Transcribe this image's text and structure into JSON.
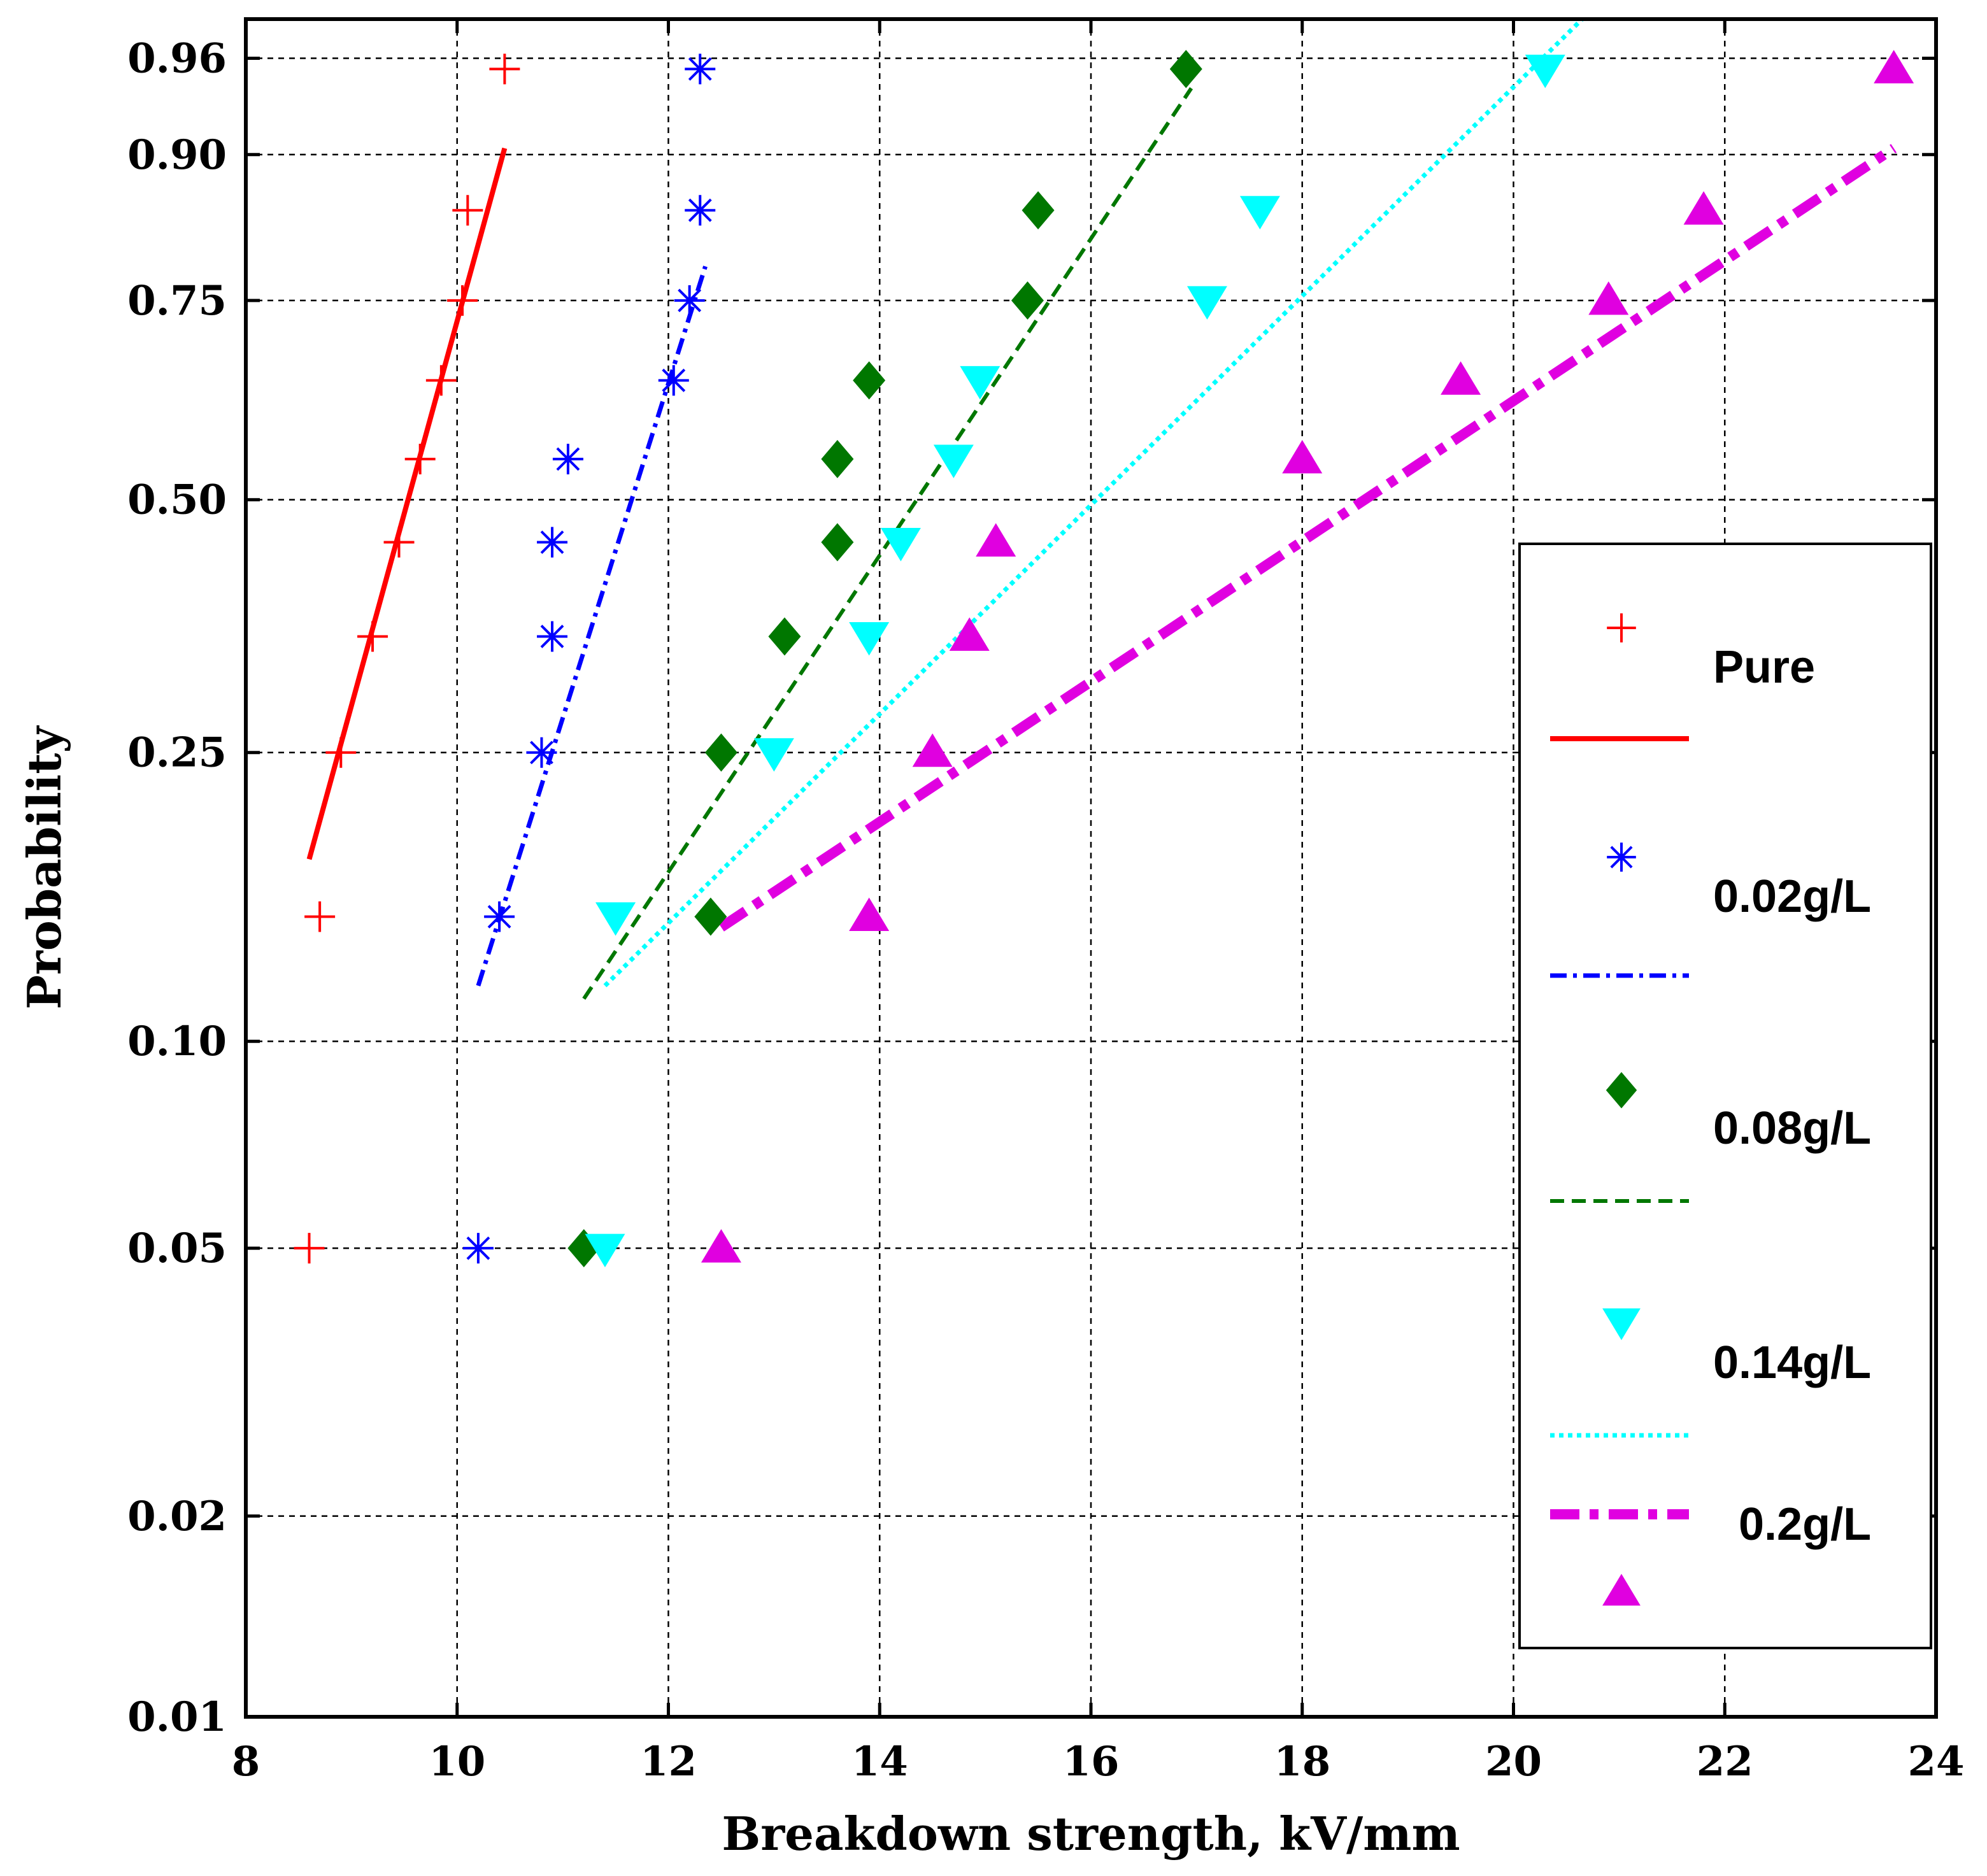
{
  "chart_data": {
    "type": "scatter",
    "title": "",
    "xlabel": "Breakdown strength, kV/mm",
    "ylabel": "Probability",
    "xlim": [
      8,
      24
    ],
    "ylim": [
      0.01,
      0.975
    ],
    "y_scale": "weibull",
    "grid": true,
    "legend_position": "right",
    "x_ticks": [
      8,
      10,
      12,
      14,
      16,
      18,
      20,
      22,
      24
    ],
    "x_tick_labels": [
      "8",
      "10",
      "12",
      "14",
      "16",
      "18",
      "20",
      "22",
      "24"
    ],
    "y_ticks": [
      0.01,
      0.02,
      0.05,
      0.1,
      0.25,
      0.5,
      0.75,
      0.9,
      0.96
    ],
    "y_tick_labels": [
      "0.01",
      "0.02",
      "0.05",
      "0.10",
      "0.25",
      "0.50",
      "0.75",
      "0.90",
      "0.96"
    ],
    "series": [
      {
        "name": "Pure",
        "color": "#ff0000",
        "marker": "plus",
        "line_style": "solid",
        "points": [
          [
            8.6,
            0.05
          ],
          [
            8.7,
            0.15
          ],
          [
            8.9,
            0.25
          ],
          [
            9.2,
            0.35
          ],
          [
            9.45,
            0.45
          ],
          [
            9.65,
            0.55
          ],
          [
            9.85,
            0.65
          ],
          [
            10.05,
            0.75
          ],
          [
            10.1,
            0.85
          ],
          [
            10.45,
            0.955
          ]
        ],
        "fit_line": [
          [
            8.6,
            0.18
          ],
          [
            10.45,
            0.905
          ]
        ]
      },
      {
        "name": "0.02g/L",
        "color": "#0000ff",
        "marker": "asterisk",
        "line_style": "dashdot",
        "points": [
          [
            10.2,
            0.05
          ],
          [
            10.4,
            0.15
          ],
          [
            10.8,
            0.25
          ],
          [
            10.9,
            0.35
          ],
          [
            10.9,
            0.45
          ],
          [
            11.05,
            0.55
          ],
          [
            12.05,
            0.65
          ],
          [
            12.2,
            0.75
          ],
          [
            12.3,
            0.85
          ],
          [
            12.3,
            0.955
          ]
        ],
        "fit_line": [
          [
            10.2,
            0.12
          ],
          [
            12.35,
            0.79
          ]
        ]
      },
      {
        "name": "0.08g/L",
        "color": "#007700",
        "marker": "diamond",
        "line_style": "dashed",
        "points": [
          [
            11.2,
            0.05
          ],
          [
            12.4,
            0.15
          ],
          [
            12.5,
            0.25
          ],
          [
            13.1,
            0.35
          ],
          [
            13.6,
            0.45
          ],
          [
            13.6,
            0.55
          ],
          [
            13.9,
            0.65
          ],
          [
            15.4,
            0.75
          ],
          [
            15.5,
            0.85
          ],
          [
            16.9,
            0.955
          ]
        ],
        "fit_line": [
          [
            11.2,
            0.115
          ],
          [
            16.95,
            0.945
          ]
        ]
      },
      {
        "name": "0.14g/L",
        "color": "#00ffff",
        "marker": "triangle-down",
        "line_style": "dotted",
        "points": [
          [
            11.4,
            0.05
          ],
          [
            11.5,
            0.15
          ],
          [
            13.0,
            0.25
          ],
          [
            13.9,
            0.35
          ],
          [
            14.2,
            0.45
          ],
          [
            14.7,
            0.55
          ],
          [
            14.95,
            0.65
          ],
          [
            17.1,
            0.75
          ],
          [
            17.6,
            0.85
          ],
          [
            20.3,
            0.955
          ]
        ],
        "fit_line": [
          [
            11.4,
            0.12
          ],
          [
            20.65,
            0.975
          ]
        ]
      },
      {
        "name": "0.2g/L",
        "color": "#e000e0",
        "marker": "triangle-up",
        "line_style": "dashdot-thick",
        "points": [
          [
            12.5,
            0.05
          ],
          [
            13.9,
            0.15
          ],
          [
            14.5,
            0.25
          ],
          [
            14.85,
            0.35
          ],
          [
            15.1,
            0.45
          ],
          [
            18.0,
            0.55
          ],
          [
            19.5,
            0.65
          ],
          [
            20.9,
            0.75
          ],
          [
            21.8,
            0.85
          ],
          [
            23.6,
            0.955
          ]
        ],
        "fit_line": [
          [
            12.5,
            0.145
          ],
          [
            23.6,
            0.905
          ]
        ]
      }
    ],
    "legend": [
      {
        "label": "Pure"
      },
      {
        "label": "0.02g/L"
      },
      {
        "label": "0.08g/L"
      },
      {
        "label": "0.14g/L"
      },
      {
        "label": " 0.2g/L"
      }
    ]
  }
}
